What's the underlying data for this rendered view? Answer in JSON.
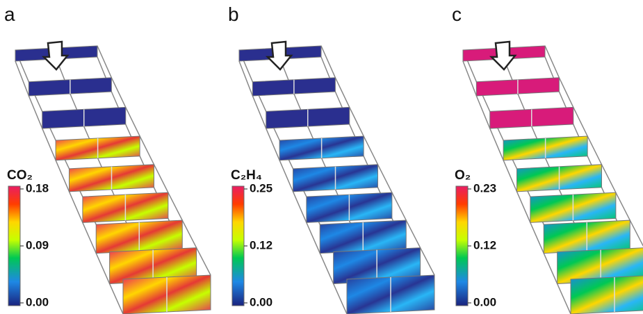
{
  "panels": [
    {
      "label": "a",
      "colorbar": {
        "title": "CO₂",
        "ticks": [
          "0.18",
          "0.09",
          "0.00"
        ]
      }
    },
    {
      "label": "b",
      "colorbar": {
        "title": "C₂H₄",
        "ticks": [
          "0.25",
          "0.12",
          "0.00"
        ]
      }
    },
    {
      "label": "c",
      "colorbar": {
        "title": "O₂",
        "ticks": [
          "0.23",
          "0.12",
          "0.00"
        ]
      }
    }
  ]
}
